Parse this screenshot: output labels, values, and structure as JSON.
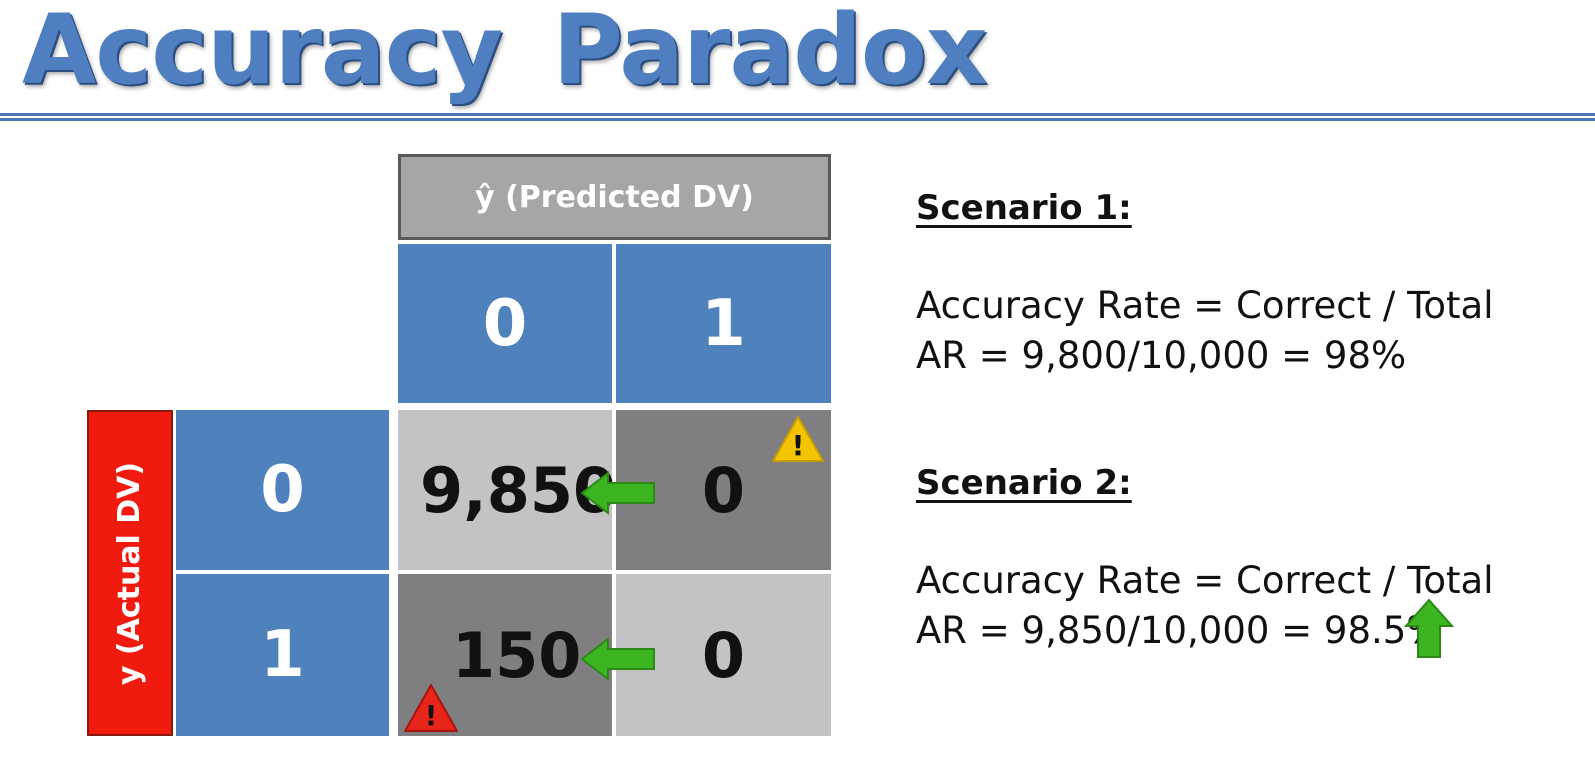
{
  "title": "Accuracy Paradox",
  "matrix": {
    "predicted_header": "ŷ (Predicted DV)",
    "actual_header": "y (Actual DV)",
    "pred_labels": [
      "0",
      "1"
    ],
    "actual_labels": [
      "0",
      "1"
    ],
    "cells": [
      [
        "9,850",
        "0"
      ],
      [
        "150",
        "0"
      ]
    ]
  },
  "scenario1": {
    "heading": "Scenario 1:",
    "line1": "Accuracy Rate = Correct / Total",
    "line2": "AR = 9,800/10,000 = 98%"
  },
  "scenario2": {
    "heading": "Scenario 2:",
    "line1": "Accuracy Rate = Correct / Total",
    "line2": "AR = 9,850/10,000 = 98.5%"
  },
  "warning_glyph": "!",
  "colors": {
    "title": "#4f7fc0",
    "header_blue": "#4f81bd",
    "actual_red": "#f01a0f",
    "arrow_green": "#3cb521",
    "warning_yellow": "#f5c400",
    "warning_red": "#e8251a"
  }
}
